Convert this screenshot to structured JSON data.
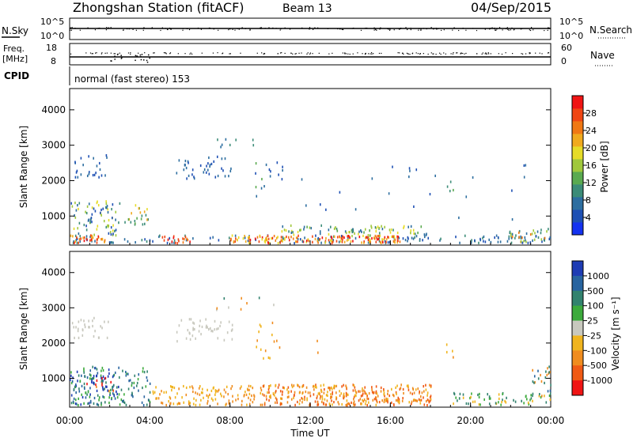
{
  "header": {
    "station": "Zhongshan Station (fitACF)",
    "beam": "Beam 13",
    "date": "04/Sep/2015"
  },
  "top_panels": {
    "nsky_label": "N.Sky",
    "nsky_ticks": [
      "10^5",
      "10^0"
    ],
    "nsearch_label": "N.Search",
    "nsearch_ticks": [
      "10^5",
      "10^0"
    ],
    "freq_label_line1": "Freq.",
    "freq_label_line2": "[MHz]",
    "freq_ticks": [
      "18",
      "8"
    ],
    "nave_label": "Nave",
    "nave_ticks": [
      "60",
      "0"
    ],
    "cpid_label": "CPID",
    "cpid_text": "normal (fast stereo) 153"
  },
  "chart_data": [
    {
      "type": "heatmap",
      "name": "power",
      "ylabel": "Slant Range [km]",
      "yticks": [
        1000,
        2000,
        3000,
        4000
      ],
      "ylim": [
        180,
        4600
      ],
      "xlim": [
        0,
        24
      ],
      "colorbar": {
        "label": "Power [dB]",
        "ticks": [
          "4",
          "8",
          "12",
          "16",
          "20",
          "24",
          "28"
        ],
        "colors": [
          "#1432f0",
          "#1e50b4",
          "#2d6ea0",
          "#3c8c78",
          "#5aaa50",
          "#a0c83c",
          "#e6dc28",
          "#f0aa1e",
          "#f07814",
          "#f04614",
          "#f01414"
        ]
      }
    },
    {
      "type": "heatmap",
      "name": "velocity",
      "ylabel": "Slant Range [km]",
      "yticks": [
        1000,
        2000,
        3000,
        4000
      ],
      "ylim": [
        180,
        4600
      ],
      "xlim": [
        0,
        24
      ],
      "xticks": [
        "00:00",
        "04:00",
        "08:00",
        "12:00",
        "16:00",
        "20:00",
        "00:00"
      ],
      "xlabel": "Time UT",
      "colorbar": {
        "label": "Velocity [m s⁻¹]",
        "ticks": [
          "1000",
          "500",
          "100",
          "25",
          "-25",
          "-100",
          "-500",
          "-1000"
        ],
        "colors": [
          "#1e3cb4",
          "#2864a0",
          "#32826e",
          "#3caa3c",
          "#c8c8be",
          "#f0b41e",
          "#f08c1e",
          "#f05a14",
          "#f01414"
        ]
      }
    }
  ]
}
